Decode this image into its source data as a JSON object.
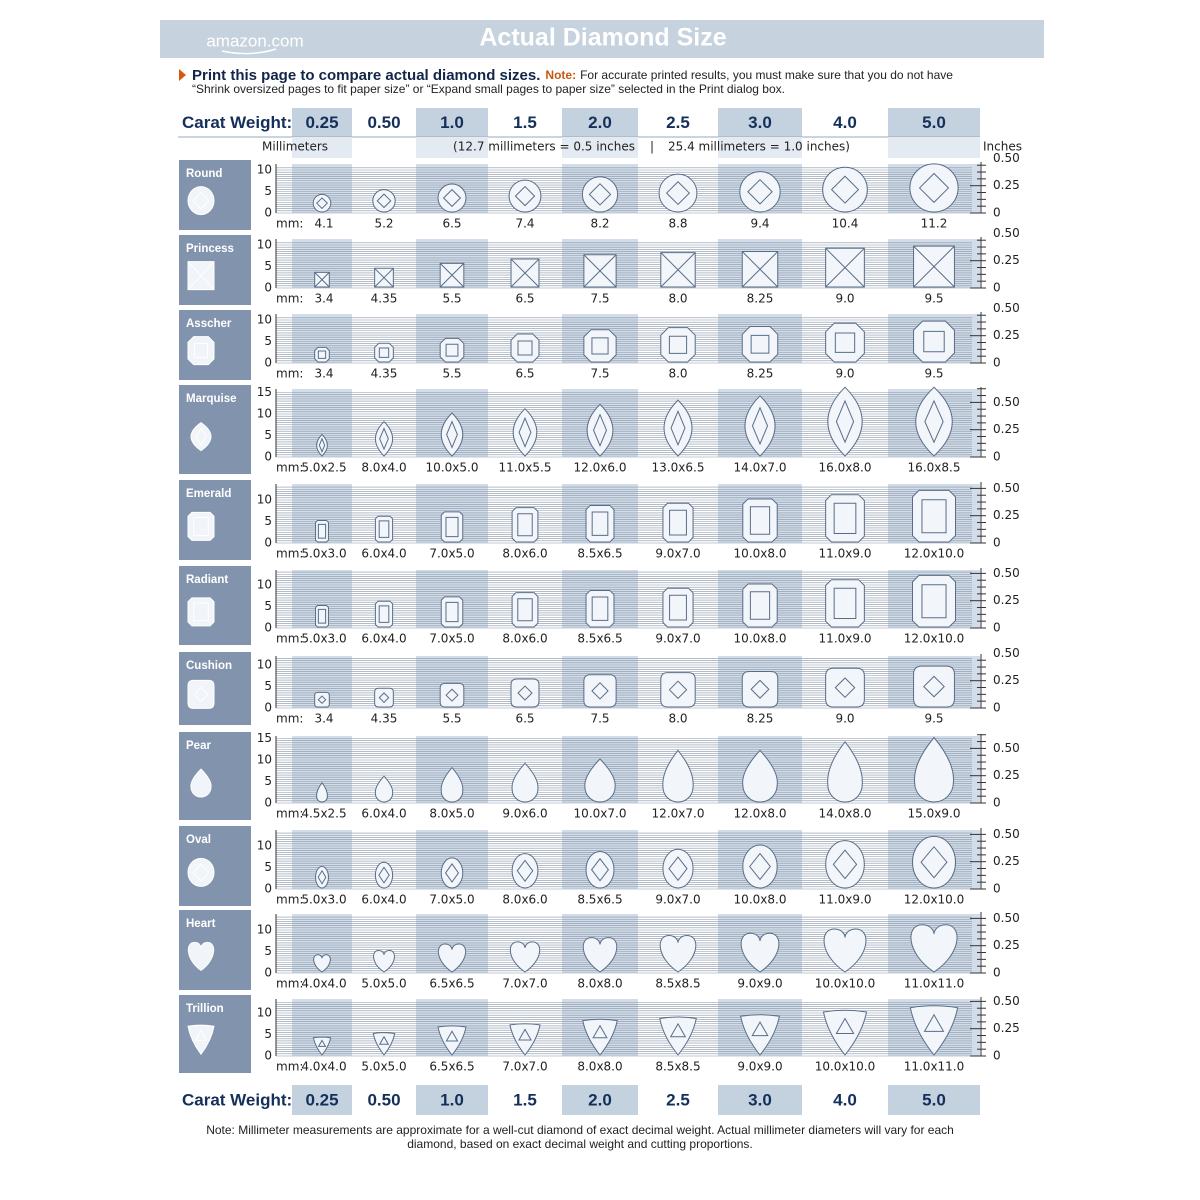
{
  "header": {
    "brand": "amazon.com",
    "title": "Actual Diamond Size"
  },
  "intro": {
    "lead": "Print this page to compare actual diamond sizes.",
    "note_label": "Note:",
    "note": [
      "For accurate printed results, you must make sure that you do not have",
      "“Shrink oversized pages to fit paper size” or “Expand small pages to paper size” selected in the Print dialog box."
    ]
  },
  "carat_label": "Carat Weight:",
  "carats": [
    "0.25",
    "0.50",
    "1.0",
    "1.5",
    "2.0",
    "2.5",
    "3.0",
    "4.0",
    "5.0"
  ],
  "units": {
    "mm_label": "Millimeters",
    "scale_note_1": "(12.7 millimeters = 0.5 inches",
    "separator": "|",
    "scale_note_2": "25.4 millimeters = 1.0 inches)",
    "inches_label": "Inches"
  },
  "mm_prefix": "mm:",
  "shapes": [
    {
      "name": "Round",
      "mm_ticks": [
        0,
        5,
        10
      ],
      "inch_ticks": [
        0,
        0.25,
        {
          "value": 0.5,
          "label": "0.50"
        }
      ],
      "sizes": [
        "4.1",
        "5.2",
        "6.5",
        "7.4",
        "8.2",
        "8.8",
        "9.4",
        "10.4",
        "11.2"
      ]
    },
    {
      "name": "Princess",
      "mm_ticks": [
        0,
        5,
        10
      ],
      "inch_ticks": [
        0,
        0.25,
        {
          "value": 0.5,
          "label": "0.50"
        }
      ],
      "sizes": [
        "3.4",
        "4.35",
        "5.5",
        "6.5",
        "7.5",
        "8.0",
        "8.25",
        "9.0",
        "9.5"
      ]
    },
    {
      "name": "Asscher",
      "mm_ticks": [
        0,
        5,
        10
      ],
      "inch_ticks": [
        0,
        0.25,
        {
          "value": 0.5,
          "label": "0.50"
        }
      ],
      "sizes": [
        "3.4",
        "4.35",
        "5.5",
        "6.5",
        "7.5",
        "8.0",
        "8.25",
        "9.0",
        "9.5"
      ]
    },
    {
      "name": "Marquise",
      "mm_ticks": [
        0,
        5,
        10,
        15
      ],
      "inch_ticks": [
        0,
        0.25,
        {
          "value": 0.5,
          "label": "0.50"
        }
      ],
      "sizes": [
        "5.0x2.5",
        "8.0x4.0",
        "10.0x5.0",
        "11.0x5.5",
        "12.0x6.0",
        "13.0x6.5",
        "14.0x7.0",
        "16.0x8.0",
        "16.0x8.5"
      ]
    },
    {
      "name": "Emerald",
      "mm_ticks": [
        0,
        5,
        10
      ],
      "inch_ticks": [
        0,
        0.25,
        {
          "value": 0.5,
          "label": "0.50"
        }
      ],
      "sizes": [
        "5.0x3.0",
        "6.0x4.0",
        "7.0x5.0",
        "8.0x6.0",
        "8.5x6.5",
        "9.0x7.0",
        "10.0x8.0",
        "11.0x9.0",
        "12.0x10.0"
      ]
    },
    {
      "name": "Radiant",
      "mm_ticks": [
        0,
        5,
        10
      ],
      "inch_ticks": [
        0,
        0.25,
        {
          "value": 0.5,
          "label": "0.50"
        }
      ],
      "sizes": [
        "5.0x3.0",
        "6.0x4.0",
        "7.0x5.0",
        "8.0x6.0",
        "8.5x6.5",
        "9.0x7.0",
        "10.0x8.0",
        "11.0x9.0",
        "12.0x10.0"
      ]
    },
    {
      "name": "Cushion",
      "mm_ticks": [
        0,
        5,
        10
      ],
      "inch_ticks": [
        0,
        0.25,
        {
          "value": 0.5,
          "label": "0.50"
        }
      ],
      "sizes": [
        "3.4",
        "4.35",
        "5.5",
        "6.5",
        "7.5",
        "8.0",
        "8.25",
        "9.0",
        "9.5"
      ]
    },
    {
      "name": "Pear",
      "mm_ticks": [
        0,
        5,
        10,
        15
      ],
      "inch_ticks": [
        0,
        0.25,
        {
          "value": 0.5,
          "label": "0.50"
        }
      ],
      "sizes": [
        "4.5x2.5",
        "6.0x4.0",
        "8.0x5.0",
        "9.0x6.0",
        "10.0x7.0",
        "12.0x7.0",
        "12.0x8.0",
        "14.0x8.0",
        "15.0x9.0"
      ]
    },
    {
      "name": "Oval",
      "mm_ticks": [
        0,
        5,
        10
      ],
      "inch_ticks": [
        0,
        0.25,
        {
          "value": 0.5,
          "label": "0.50"
        }
      ],
      "sizes": [
        "5.0x3.0",
        "6.0x4.0",
        "7.0x5.0",
        "8.0x6.0",
        "8.5x6.5",
        "9.0x7.0",
        "10.0x8.0",
        "11.0x9.0",
        "12.0x10.0"
      ]
    },
    {
      "name": "Heart",
      "mm_ticks": [
        0,
        5,
        10
      ],
      "inch_ticks": [
        0,
        0.25,
        {
          "value": 0.5,
          "label": "0.50"
        }
      ],
      "sizes": [
        "4.0x4.0",
        "5.0x5.0",
        "6.5x6.5",
        "7.0x7.0",
        "8.0x8.0",
        "8.5x8.5",
        "9.0x9.0",
        "10.0x10.0",
        "11.0x11.0"
      ]
    },
    {
      "name": "Trillion",
      "mm_ticks": [
        0,
        5,
        10
      ],
      "inch_ticks": [
        0,
        0.25,
        {
          "value": 0.5,
          "label": "0.50"
        }
      ],
      "sizes": [
        "4.0x4.0",
        "5.0x5.0",
        "6.5x6.5",
        "7.0x7.0",
        "8.0x8.0",
        "8.5x8.5",
        "9.0x9.0",
        "10.0x10.0",
        "11.0x11.0"
      ]
    }
  ],
  "footer": [
    "Note: Millimeter measurements are approximate for a well-cut diamond of exact decimal weight. Actual millimeter diameters will vary for each",
    "diamond, based on exact decimal weight and cutting proportions."
  ]
}
